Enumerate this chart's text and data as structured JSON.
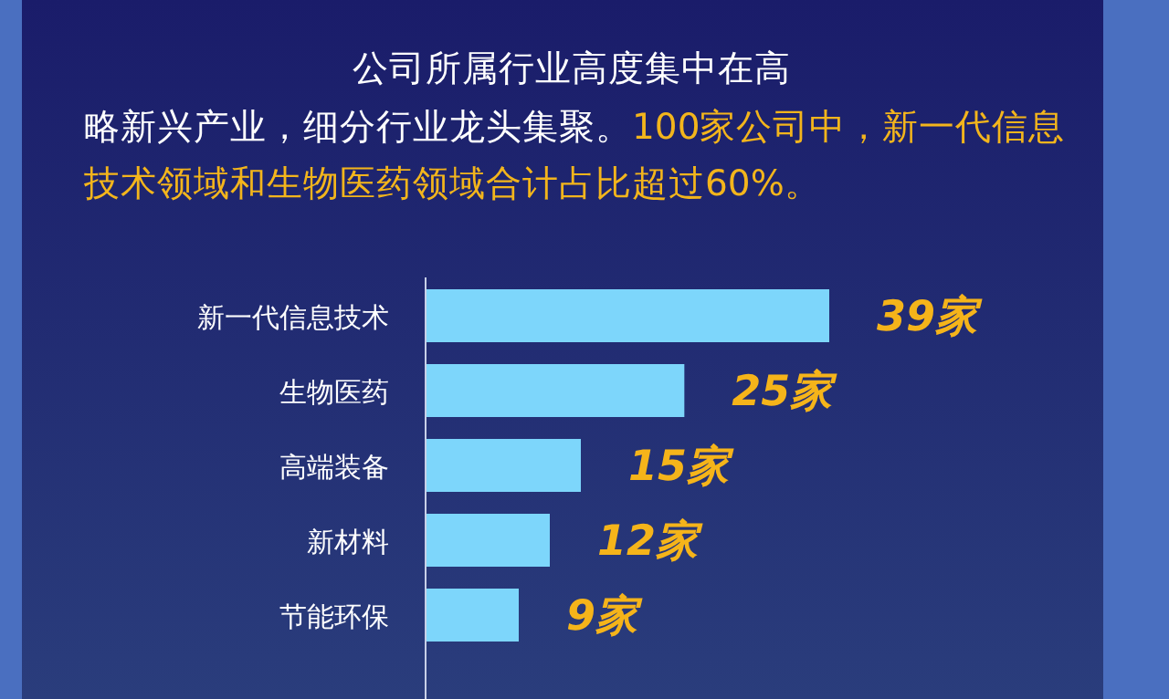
{
  "chart_data": {
    "type": "bar",
    "orientation": "horizontal",
    "title": "公司所属行业高度集中在高",
    "subtitle": "略新兴产业，细分行业龙头集聚。",
    "annotations": [
      "100家公司中，新一代信息技术领域和生物医药领域合计占比超过60%。"
    ],
    "categories": [
      "新一代信息技术",
      "生物医药",
      "高端装备",
      "新材料",
      "节能环保"
    ],
    "values": [
      39,
      25,
      15,
      12,
      9
    ],
    "value_labels": [
      "39家",
      "25家",
      "15家",
      "12家",
      "9家"
    ],
    "color": "#7dd6fb"
  }
}
